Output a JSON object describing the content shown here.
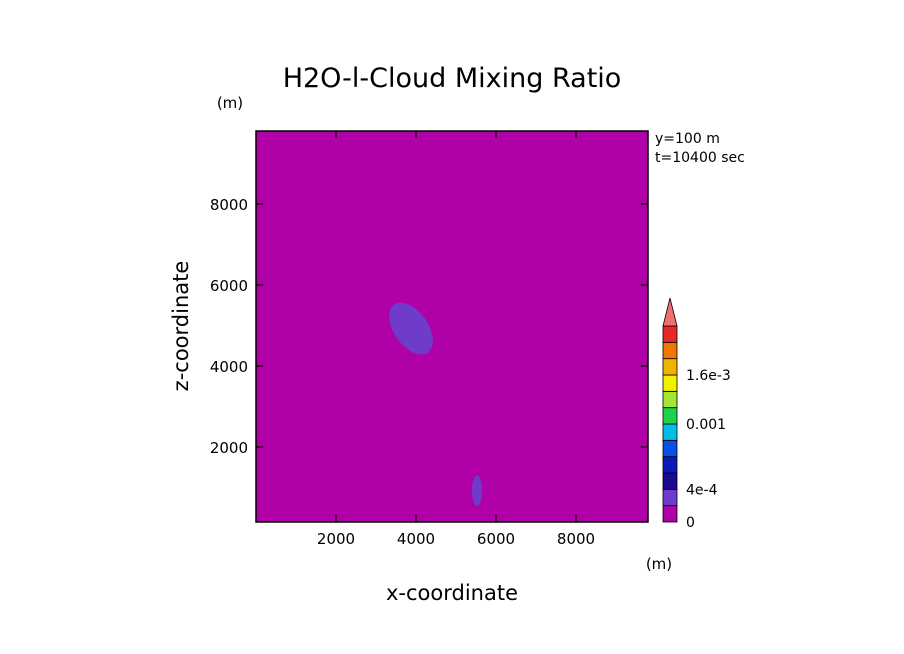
{
  "chart_data": {
    "type": "heatmap",
    "title": "H2O-l-Cloud Mixing Ratio",
    "xlabel": "x-coordinate",
    "ylabel": "z-coordinate",
    "x_unit": "(m)",
    "y_unit": "(m)",
    "annotations": [
      "y=100 m",
      "t=10400 sec"
    ],
    "xlim": [
      0,
      9800
    ],
    "ylim": [
      150,
      9800
    ],
    "x_ticks": [
      2000,
      4000,
      6000,
      8000
    ],
    "y_ticks": [
      2000,
      4000,
      6000,
      8000
    ],
    "background_value": 0,
    "features": [
      {
        "label": "cloud patch",
        "x_range": [
          3450,
          4300
        ],
        "z_range": [
          4200,
          5650
        ],
        "level_index": 1
      },
      {
        "label": "cloud patch",
        "x_range": [
          5400,
          5650
        ],
        "z_range": [
          550,
          1300
        ],
        "level_index": 1
      }
    ],
    "colorbar": {
      "levels": [
        "0",
        "",
        "4e-4",
        "",
        "",
        "",
        "0.001",
        "",
        "",
        "1.6e-3",
        "",
        ""
      ],
      "colors": [
        "#b000a8",
        "#6e3cc8",
        "#1a0a90",
        "#0a1ab8",
        "#0a50e6",
        "#00bee6",
        "#1ed250",
        "#a0e632",
        "#f0f000",
        "#f0b400",
        "#f07800",
        "#e62828"
      ],
      "over_color": "#f07070",
      "tick_labels": [
        "0",
        "4e-4",
        "0.001",
        "1.6e-3"
      ],
      "tick_label_index": [
        0,
        2,
        6,
        9
      ]
    },
    "grid": false
  }
}
